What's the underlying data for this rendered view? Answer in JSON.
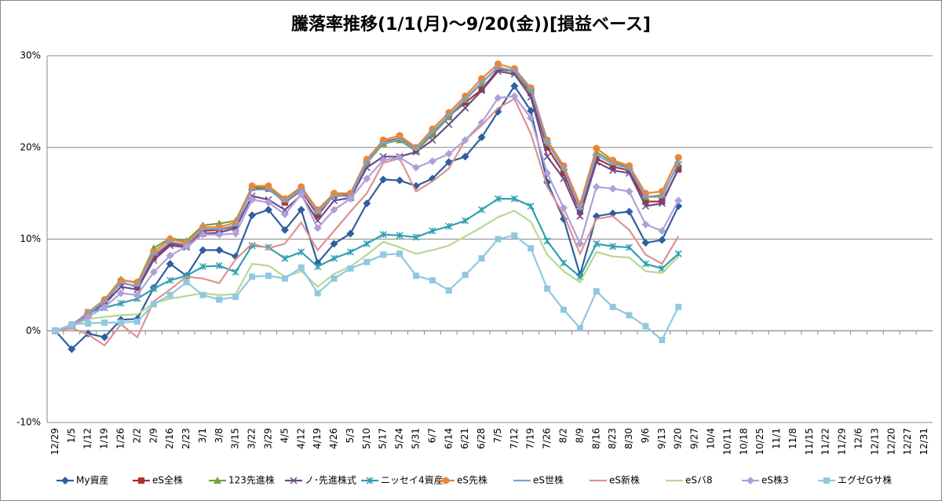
{
  "chart_data": {
    "type": "line",
    "title": "騰落率推移(1/1(月)～9/20(金))[損益ベース]",
    "categories": [
      "12/29",
      "1/5",
      "1/12",
      "1/19",
      "1/26",
      "2/2",
      "2/9",
      "2/16",
      "2/23",
      "3/1",
      "3/8",
      "3/15",
      "3/22",
      "3/29",
      "4/5",
      "4/12",
      "4/19",
      "4/26",
      "5/3",
      "5/10",
      "5/17",
      "5/24",
      "5/31",
      "6/7",
      "6/14",
      "6/21",
      "6/28",
      "7/5",
      "7/12",
      "7/19",
      "7/26",
      "8/2",
      "8/9",
      "8/16",
      "8/23",
      "8/30",
      "9/6",
      "9/13",
      "9/20",
      "9/27",
      "10/4",
      "10/11",
      "10/18",
      "10/25",
      "11/1",
      "11/8",
      "11/15",
      "11/22",
      "11/29",
      "12/6",
      "12/13",
      "12/20",
      "12/27",
      "12/31"
    ],
    "ylim": [
      -10,
      30
    ],
    "yticks": [
      {
        "value": -10,
        "label": "-10%"
      },
      {
        "value": 0,
        "label": "0%"
      },
      {
        "value": 10,
        "label": "10%"
      },
      {
        "value": 20,
        "label": "20%"
      },
      {
        "value": 30,
        "label": "30%"
      }
    ],
    "grid": true,
    "legend": "bottom",
    "series": [
      {
        "name": "My資産",
        "color": "#2f5f9e",
        "marker": "diamond",
        "values": [
          0,
          -2,
          -0.3,
          -0.7,
          1.2,
          1.3,
          4.7,
          7.3,
          6,
          8.8,
          8.8,
          8.1,
          12.6,
          13.2,
          11,
          13.2,
          7.4,
          9.5,
          10.6,
          13.9,
          16.5,
          16.4,
          15.8,
          16.6,
          18.4,
          19,
          21.1,
          23.9,
          26.7,
          24,
          16.2,
          12.2,
          6.1,
          12.5,
          12.8,
          13,
          9.6,
          9.9,
          13.6,
          null,
          null,
          null,
          null,
          null,
          null,
          null,
          null,
          null,
          null,
          null,
          null,
          null,
          null,
          null
        ]
      },
      {
        "name": "eS全株",
        "color": "#b03030",
        "marker": "square",
        "values": [
          0,
          0.5,
          1.8,
          3,
          5.3,
          4.8,
          8,
          9.5,
          9.3,
          10.9,
          11,
          11.4,
          15.6,
          15.5,
          14,
          15.3,
          12.6,
          14.8,
          14.8,
          18.5,
          20.6,
          21,
          19.8,
          21.5,
          23.4,
          24.9,
          26.3,
          28.5,
          28.3,
          25.9,
          20,
          17.2,
          13,
          18.8,
          17.9,
          17.5,
          14.1,
          14.1,
          17.6,
          null,
          null,
          null,
          null,
          null,
          null,
          null,
          null,
          null,
          null,
          null,
          null,
          null,
          null,
          null
        ]
      },
      {
        "name": "123先進株",
        "color": "#77a040",
        "marker": "triangle",
        "values": [
          0,
          0.6,
          2,
          3.4,
          5.6,
          5.2,
          9,
          10.1,
          9.8,
          11.5,
          11.7,
          12,
          15.7,
          15.6,
          14.3,
          15.5,
          13,
          14.9,
          14.6,
          18.3,
          20.4,
          20.8,
          19.6,
          21.4,
          23.3,
          25.2,
          27,
          28.8,
          28.2,
          26.2,
          20.5,
          17.8,
          13.6,
          19.5,
          18.4,
          17.8,
          14.6,
          14.8,
          18.2,
          null,
          null,
          null,
          null,
          null,
          null,
          null,
          null,
          null,
          null,
          null,
          null,
          null,
          null,
          null
        ]
      },
      {
        "name": "ノ･先進株式",
        "color": "#6a4a8a",
        "marker": "x",
        "values": [
          0,
          0.5,
          2,
          2.9,
          4.8,
          4.5,
          7.7,
          9.3,
          9.1,
          10.6,
          10.7,
          11.2,
          14.7,
          14.3,
          13.2,
          14.8,
          12,
          14.2,
          14.5,
          17.8,
          19,
          19,
          19.5,
          20.8,
          22.5,
          24.3,
          26.2,
          28.3,
          28,
          25.5,
          19,
          16.6,
          12.5,
          18.4,
          17.5,
          17.2,
          13.6,
          13.9,
          17.7,
          null,
          null,
          null,
          null,
          null,
          null,
          null,
          null,
          null,
          null,
          null,
          null,
          null,
          null,
          null
        ]
      },
      {
        "name": "ニッセイ4資産",
        "color": "#31a0b0",
        "marker": "asterisk",
        "values": [
          0,
          0.5,
          2,
          2.5,
          3,
          3.5,
          4.6,
          5.5,
          6,
          7,
          7.1,
          6.4,
          9.3,
          9.1,
          7.9,
          8.6,
          7,
          7.9,
          8.6,
          9.5,
          10.5,
          10.4,
          10.2,
          10.9,
          11.4,
          12,
          13.2,
          14.4,
          14.4,
          13.6,
          9.8,
          7.4,
          5.9,
          9.5,
          9.2,
          9.1,
          7.3,
          6.8,
          8.4,
          null,
          null,
          null,
          null,
          null,
          null,
          null,
          null,
          null,
          null,
          null,
          null,
          null,
          null,
          null
        ]
      },
      {
        "name": "eS先株",
        "color": "#e8873a",
        "marker": "circle",
        "values": [
          0,
          0.6,
          2,
          3.4,
          5.5,
          5.3,
          8.6,
          10,
          9.6,
          11.3,
          11.3,
          11.8,
          15.8,
          15.8,
          14.4,
          15.7,
          13.2,
          15,
          15,
          18.7,
          20.8,
          21.3,
          20,
          22,
          23.8,
          25.6,
          27.5,
          29.1,
          28.6,
          26.5,
          20.8,
          18,
          13.8,
          19.9,
          18.6,
          18,
          15,
          15.2,
          18.9,
          null,
          null,
          null,
          null,
          null,
          null,
          null,
          null,
          null,
          null,
          null,
          null,
          null,
          null,
          null
        ]
      },
      {
        "name": "eS世株",
        "color": "#7aa0d8",
        "marker": "dash",
        "values": [
          0,
          0.5,
          1.9,
          3.2,
          5.2,
          4.9,
          8.3,
          9.7,
          9.4,
          11.1,
          11.1,
          11.5,
          15.4,
          15.4,
          14.1,
          15.4,
          12.9,
          14.7,
          14.7,
          18.4,
          20.5,
          20.9,
          19.8,
          21.7,
          23.5,
          25.3,
          27.1,
          28.7,
          28.4,
          26.3,
          20.5,
          17.6,
          13.3,
          19.2,
          18.2,
          17.7,
          14.6,
          14.6,
          18.4,
          null,
          null,
          null,
          null,
          null,
          null,
          null,
          null,
          null,
          null,
          null,
          null,
          null,
          null,
          null
        ]
      },
      {
        "name": "eS新株",
        "color": "#e09090",
        "marker": "none",
        "values": [
          0,
          0.3,
          -0.4,
          -1.6,
          0.7,
          -0.7,
          3.2,
          4.5,
          5.9,
          5.7,
          5.2,
          7.8,
          9.5,
          9,
          9.5,
          11.8,
          8.8,
          10.9,
          13,
          15,
          18.3,
          18.8,
          15.2,
          16.3,
          17.7,
          20.8,
          22.4,
          24.3,
          25.3,
          21.5,
          15.7,
          12.7,
          8.4,
          12.2,
          12.5,
          11,
          8.3,
          7.3,
          10.3,
          null,
          null,
          null,
          null,
          null,
          null,
          null,
          null,
          null,
          null,
          null,
          null,
          null,
          null,
          null
        ]
      },
      {
        "name": "eSバ8",
        "color": "#b8d890",
        "marker": "none",
        "values": [
          0,
          0.5,
          1.3,
          1.5,
          1.7,
          1.8,
          3,
          3.5,
          3.8,
          4.1,
          3.9,
          4,
          7.3,
          7.1,
          5.9,
          6.5,
          4.8,
          6.2,
          7,
          8.3,
          9.7,
          9.1,
          8.4,
          8.8,
          9.3,
          10.3,
          11.3,
          12.4,
          13.1,
          11.9,
          8.3,
          6.5,
          5.3,
          8.6,
          8.1,
          8,
          6.5,
          6.3,
          8.1,
          null,
          null,
          null,
          null,
          null,
          null,
          null,
          null,
          null,
          null,
          null,
          null,
          null,
          null,
          null
        ]
      },
      {
        "name": "eS株3",
        "color": "#b0a0d8",
        "marker": "diamond",
        "values": [
          0,
          0.5,
          1.5,
          2.6,
          4.1,
          3.9,
          6.4,
          8.2,
          9.2,
          10.5,
          10.5,
          10.6,
          14.3,
          14,
          12.7,
          14.9,
          11.2,
          13.2,
          14.4,
          16.6,
          18.6,
          18.9,
          17.8,
          18.5,
          19.3,
          20.8,
          22.7,
          25.4,
          25.6,
          23.2,
          17.2,
          13.4,
          9.5,
          15.7,
          15.5,
          15.2,
          11.6,
          10.9,
          14.2,
          null,
          null,
          null,
          null,
          null,
          null,
          null,
          null,
          null,
          null,
          null,
          null,
          null,
          null,
          null
        ]
      },
      {
        "name": "エグゼGサ株",
        "color": "#90c8e0",
        "marker": "square",
        "values": [
          0,
          0.7,
          0.8,
          0.9,
          0.9,
          1,
          2.9,
          3.9,
          5.3,
          3.9,
          3.4,
          3.7,
          5.9,
          6,
          5.7,
          6.9,
          4.1,
          5.7,
          6.8,
          7.5,
          8.3,
          8.4,
          6,
          5.5,
          4.4,
          6.1,
          7.9,
          10,
          10.4,
          9,
          4.6,
          2.3,
          0.3,
          4.3,
          2.6,
          1.7,
          0.5,
          -1,
          2.6,
          null,
          null,
          null,
          null,
          null,
          null,
          null,
          null,
          null,
          null,
          null,
          null,
          null,
          null,
          null
        ]
      }
    ]
  }
}
